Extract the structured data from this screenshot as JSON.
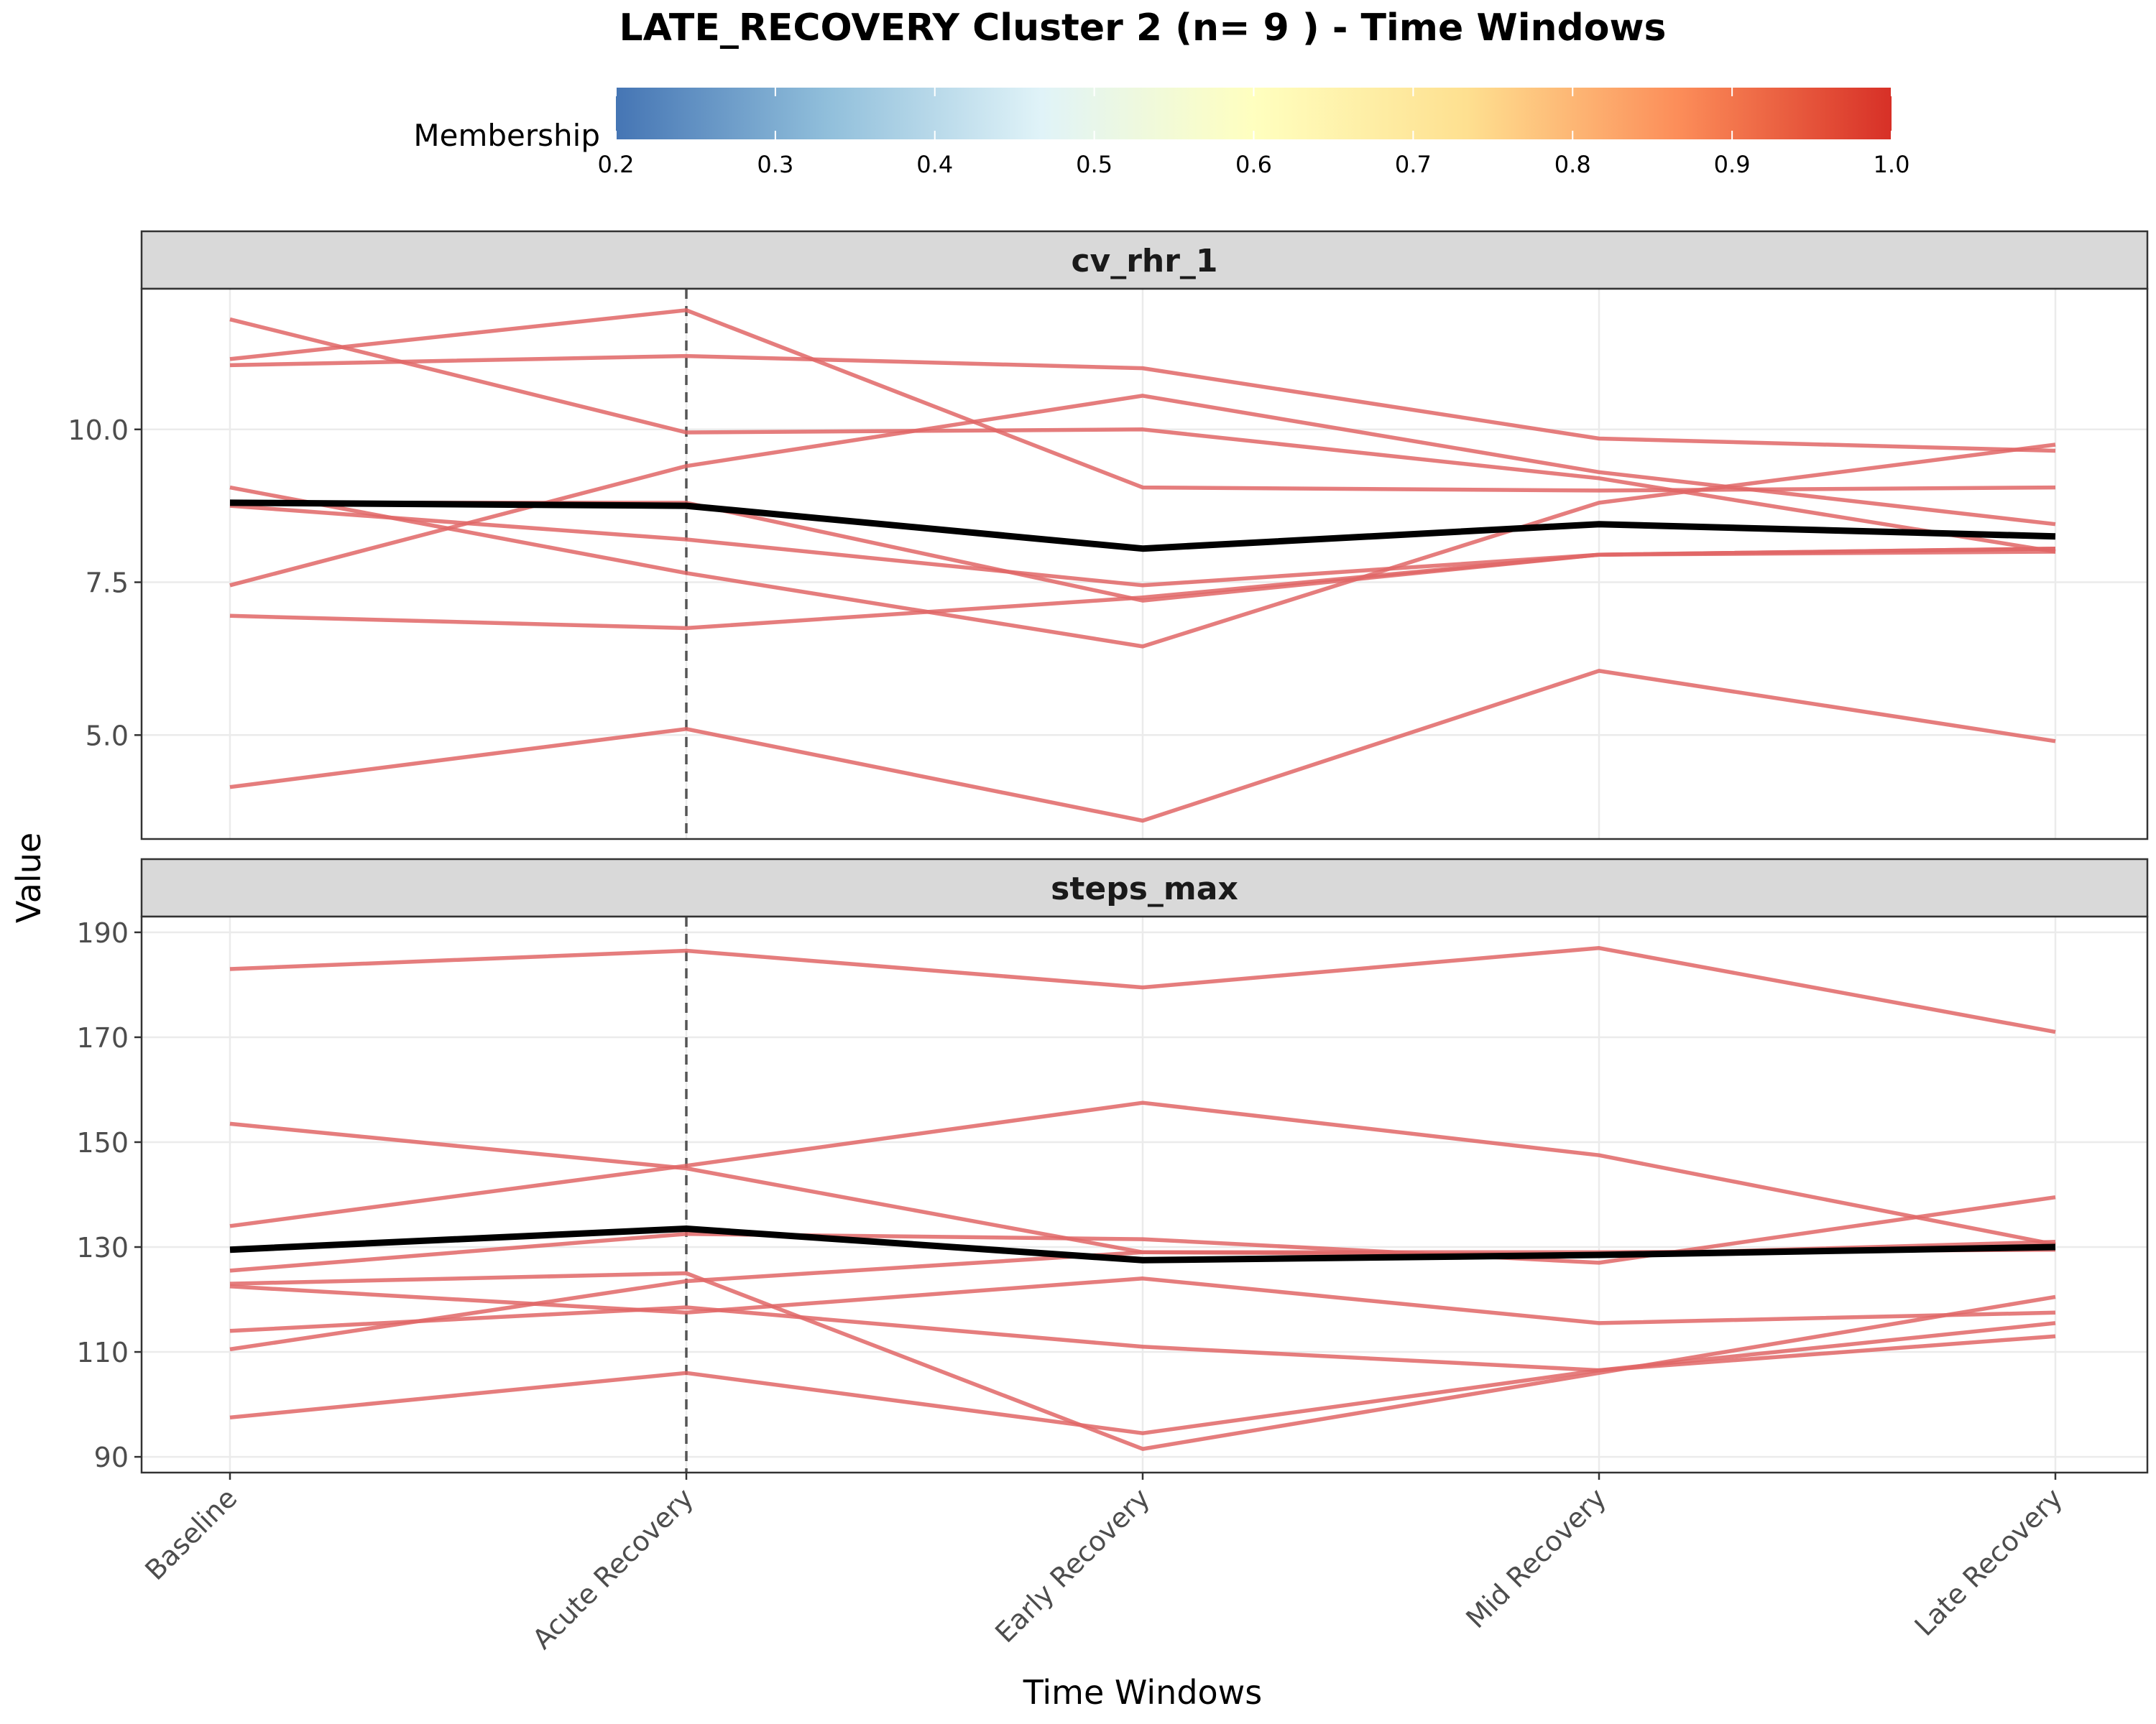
{
  "title": "LATE_RECOVERY Cluster 2 (n= 9 ) - Time Windows",
  "legend": {
    "title": "Membership",
    "ticks": [
      "0.2",
      "0.3",
      "0.4",
      "0.5",
      "0.6",
      "0.7",
      "0.8",
      "0.9",
      "1.0"
    ],
    "range": [
      0.2,
      1.0
    ],
    "colors": [
      "#4575b4",
      "#91bfdb",
      "#e0f3f8",
      "#ffffbf",
      "#fee090",
      "#fc8d59",
      "#d73027"
    ]
  },
  "chart_data": {
    "type": "line",
    "xlabel": "Time Windows",
    "ylabel": "Value",
    "categories": [
      "Baseline",
      "Acute Recovery",
      "Early Recovery",
      "Mid Recovery",
      "Late Recovery"
    ],
    "vline_at": "Acute Recovery",
    "member_color": "#e06666",
    "mean_color": "#000000",
    "facets": [
      {
        "name": "cv_rhr_1",
        "ylim": [
          3.3,
          12.3
        ],
        "yticks": [
          5.0,
          7.5,
          10.0
        ],
        "ytick_labels": [
          "5.0",
          "7.5",
          "10.0"
        ],
        "members": [
          [
            11.8,
            9.95,
            10.0,
            9.2,
            8.0
          ],
          [
            11.15,
            11.95,
            9.05,
            9.0,
            9.05
          ],
          [
            11.05,
            11.2,
            11.0,
            9.85,
            9.65
          ],
          [
            9.05,
            7.65,
            6.45,
            8.8,
            9.75
          ],
          [
            8.8,
            8.8,
            7.2,
            7.95,
            8.0
          ],
          [
            8.75,
            8.2,
            7.45,
            7.95,
            8.05
          ],
          [
            7.45,
            9.4,
            10.55,
            9.3,
            8.45
          ],
          [
            6.95,
            6.75,
            7.25,
            7.95,
            8.05
          ],
          [
            4.15,
            5.1,
            3.6,
            6.05,
            4.9
          ]
        ],
        "mean": [
          8.8,
          8.75,
          8.05,
          8.45,
          8.25
        ]
      },
      {
        "name": "steps_max",
        "ylim": [
          87,
          193
        ],
        "yticks": [
          90,
          110,
          130,
          150,
          170,
          190
        ],
        "ytick_labels": [
          "90",
          "110",
          "130",
          "150",
          "170",
          "190"
        ],
        "members": [
          [
            183,
            186.5,
            179.5,
            187,
            171
          ],
          [
            153.5,
            145,
            129,
            128.5,
            131
          ],
          [
            134,
            145.5,
            157.5,
            147.5,
            130.5
          ],
          [
            125.5,
            132.5,
            131.5,
            127,
            139.5
          ],
          [
            123,
            125,
            91.5,
            106,
            120.5
          ],
          [
            122.5,
            117.5,
            124,
            115.5,
            117.5
          ],
          [
            114,
            118.5,
            111,
            106.5,
            115.5
          ],
          [
            110.5,
            123.5,
            129,
            129,
            129.5
          ],
          [
            97.5,
            106,
            94.5,
            106.5,
            113
          ]
        ],
        "mean": [
          129.5,
          133.5,
          127.5,
          128.5,
          130
        ]
      }
    ]
  }
}
